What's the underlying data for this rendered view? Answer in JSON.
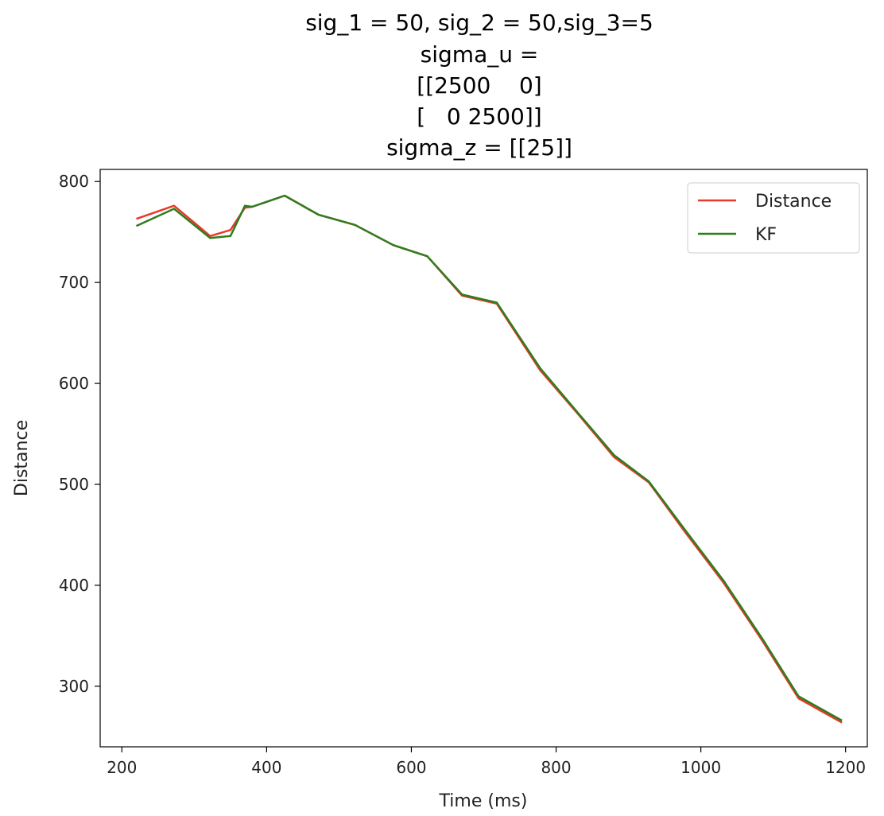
{
  "chart_data": {
    "type": "line",
    "title_lines": [
      "sig_1 = 50, sig_2 = 50,sig_3=5",
      "sigma_u =",
      "[[2500    0]",
      "[   0 2500]]",
      "sigma_z = [[25]]"
    ],
    "xlabel": "Time (ms)",
    "ylabel": "Distance",
    "xlim": [
      170,
      1230
    ],
    "ylim": [
      240,
      812
    ],
    "xticks": [
      200,
      400,
      600,
      800,
      1000,
      1200
    ],
    "yticks": [
      300,
      400,
      500,
      600,
      700,
      800
    ],
    "grid": false,
    "legend_position": "top-right",
    "series": [
      {
        "name": "Distance",
        "color": "#e8392a",
        "x": [
          220,
          272,
          322,
          350,
          370,
          380,
          425,
          472,
          522,
          575,
          622,
          670,
          718,
          778,
          830,
          880,
          928,
          978,
          1032,
          1085,
          1135,
          1195
        ],
        "y": [
          763,
          776,
          746,
          752,
          774,
          775,
          786,
          767,
          757,
          737,
          726,
          687,
          679,
          613,
          570,
          527,
          502,
          453,
          402,
          345,
          288,
          264
        ]
      },
      {
        "name": "KF",
        "color": "#2e7d1e",
        "x": [
          220,
          272,
          322,
          350,
          370,
          380,
          425,
          472,
          522,
          575,
          622,
          670,
          718,
          778,
          830,
          880,
          928,
          978,
          1032,
          1085,
          1135,
          1195
        ],
        "y": [
          756,
          773,
          744,
          746,
          776,
          775,
          786,
          767,
          757,
          737,
          726,
          688,
          680,
          615,
          571,
          529,
          503,
          455,
          404,
          347,
          290,
          266
        ]
      }
    ]
  }
}
